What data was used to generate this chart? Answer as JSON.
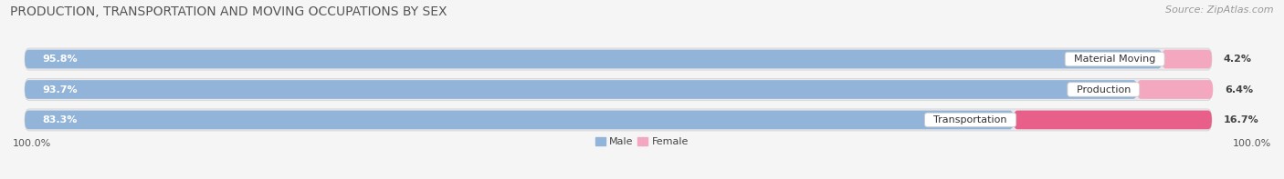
{
  "title": "PRODUCTION, TRANSPORTATION AND MOVING OCCUPATIONS BY SEX",
  "source": "Source: ZipAtlas.com",
  "categories": [
    "Material Moving",
    "Production",
    "Transportation"
  ],
  "male_values": [
    95.8,
    93.7,
    83.3
  ],
  "female_values": [
    4.2,
    6.4,
    16.7
  ],
  "male_color": "#92b4d8",
  "female_color_light": "#f4a8c0",
  "female_color_dark": "#e8608a",
  "bg_bar_color": "#e8e8ec",
  "title_fontsize": 10,
  "source_fontsize": 8,
  "label_fontsize": 8,
  "value_fontsize": 8,
  "axis_label_fontsize": 8,
  "legend_fontsize": 8,
  "left_label": "100.0%",
  "right_label": "100.0%",
  "fig_bg": "#f5f5f5"
}
